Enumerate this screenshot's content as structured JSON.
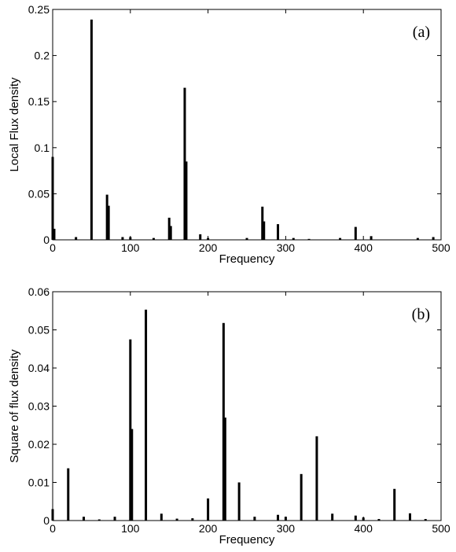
{
  "chart_data": [
    {
      "type": "bar",
      "panel_label": "(a)",
      "xlabel": "Frequency",
      "ylabel": "Local Flux density",
      "xlim": [
        0,
        500
      ],
      "ylim": [
        0,
        0.25
      ],
      "xticks": [
        0,
        100,
        200,
        300,
        400,
        500
      ],
      "yticks": [
        0,
        0.05,
        0.1,
        0.15,
        0.2,
        0.25
      ],
      "ytick_labels": [
        "0",
        "0.05",
        "0.1",
        "0.15",
        "0.2",
        "0.25"
      ],
      "grid": false,
      "x": [
        0,
        2,
        30,
        50,
        70,
        72,
        90,
        100,
        130,
        150,
        152,
        170,
        172,
        190,
        200,
        250,
        270,
        272,
        290,
        310,
        330,
        370,
        390,
        410,
        470,
        490
      ],
      "values": [
        0.09,
        0.012,
        0.003,
        0.239,
        0.049,
        0.037,
        0.003,
        0.003,
        0.002,
        0.024,
        0.015,
        0.165,
        0.085,
        0.006,
        0.002,
        0.002,
        0.036,
        0.02,
        0.017,
        0.002,
        0.001,
        0.002,
        0.014,
        0.004,
        0.002,
        0.003
      ]
    },
    {
      "type": "bar",
      "panel_label": "(b)",
      "xlabel": "Frequency",
      "ylabel": "Square of flux density",
      "xlim": [
        0,
        500
      ],
      "ylim": [
        0,
        0.06
      ],
      "xticks": [
        0,
        100,
        200,
        300,
        400,
        500
      ],
      "yticks": [
        0,
        0.01,
        0.02,
        0.03,
        0.04,
        0.05,
        0.06
      ],
      "ytick_labels": [
        "0",
        "0.01",
        "0.02",
        "0.03",
        "0.04",
        "0.05",
        "0.06"
      ],
      "grid": false,
      "x": [
        0,
        20,
        40,
        60,
        80,
        100,
        102,
        120,
        140,
        160,
        180,
        200,
        220,
        222,
        240,
        260,
        290,
        300,
        320,
        340,
        360,
        390,
        400,
        420,
        440,
        460,
        480
      ],
      "values": [
        0.003,
        0.0137,
        0.001,
        0.0003,
        0.001,
        0.0475,
        0.024,
        0.0553,
        0.0018,
        0.0005,
        0.0006,
        0.0058,
        0.0518,
        0.027,
        0.01,
        0.001,
        0.0015,
        0.001,
        0.0122,
        0.0221,
        0.0018,
        0.0013,
        0.0008,
        0.0004,
        0.0083,
        0.0019,
        0.0004
      ]
    }
  ]
}
